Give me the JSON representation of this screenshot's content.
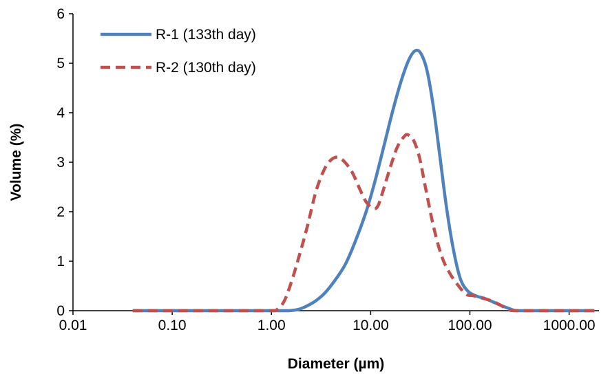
{
  "chart_data": {
    "type": "line",
    "title": "",
    "xlabel": "Diameter (µm)",
    "ylabel": "Volume (%)",
    "x_scale": "log",
    "xlim": [
      0.01,
      2000
    ],
    "ylim": [
      0,
      6
    ],
    "x_ticks": [
      {
        "value": 0.01,
        "label": "0.01"
      },
      {
        "value": 0.1,
        "label": "0.10"
      },
      {
        "value": 1,
        "label": "1.00"
      },
      {
        "value": 10,
        "label": "10.00"
      },
      {
        "value": 100,
        "label": "100.00"
      },
      {
        "value": 1000,
        "label": "1000.00"
      }
    ],
    "y_ticks": [
      {
        "value": 0,
        "label": "0"
      },
      {
        "value": 1,
        "label": "1"
      },
      {
        "value": 2,
        "label": "2"
      },
      {
        "value": 3,
        "label": "3"
      },
      {
        "value": 4,
        "label": "4"
      },
      {
        "value": 5,
        "label": "5"
      },
      {
        "value": 6,
        "label": "6"
      }
    ],
    "grid": false,
    "legend_position": "top-left",
    "series": [
      {
        "name": "R-1 (133th day)",
        "color": "#4F81BD",
        "dash": "solid",
        "points": [
          [
            0.04,
            0
          ],
          [
            0.1,
            0
          ],
          [
            0.5,
            0
          ],
          [
            1.0,
            0
          ],
          [
            1.5,
            0
          ],
          [
            1.9,
            0.03
          ],
          [
            2.3,
            0.1
          ],
          [
            2.8,
            0.2
          ],
          [
            3.5,
            0.37
          ],
          [
            4.5,
            0.65
          ],
          [
            5.6,
            0.95
          ],
          [
            7.0,
            1.4
          ],
          [
            9.0,
            2.0
          ],
          [
            11.0,
            2.6
          ],
          [
            13.5,
            3.3
          ],
          [
            16.5,
            4.0
          ],
          [
            20.0,
            4.6
          ],
          [
            24.0,
            5.05
          ],
          [
            28.0,
            5.25
          ],
          [
            32.0,
            5.2
          ],
          [
            37.0,
            4.85
          ],
          [
            43.0,
            4.1
          ],
          [
            50.0,
            3.1
          ],
          [
            58.0,
            2.1
          ],
          [
            68.0,
            1.25
          ],
          [
            80.0,
            0.65
          ],
          [
            95.0,
            0.4
          ],
          [
            115.0,
            0.3
          ],
          [
            140.0,
            0.25
          ],
          [
            170.0,
            0.18
          ],
          [
            210.0,
            0.1
          ],
          [
            260.0,
            0.03
          ],
          [
            300.0,
            0
          ],
          [
            500.0,
            0
          ],
          [
            1000.0,
            0
          ],
          [
            1800.0,
            0
          ]
        ]
      },
      {
        "name": "R-2 (130th day)",
        "color": "#C0504D",
        "dash": "dashed",
        "points": [
          [
            0.04,
            0
          ],
          [
            0.1,
            0
          ],
          [
            0.5,
            0
          ],
          [
            1.0,
            0
          ],
          [
            1.15,
            0.03
          ],
          [
            1.35,
            0.2
          ],
          [
            1.6,
            0.6
          ],
          [
            1.9,
            1.1
          ],
          [
            2.3,
            1.7
          ],
          [
            2.8,
            2.4
          ],
          [
            3.4,
            2.85
          ],
          [
            4.0,
            3.05
          ],
          [
            4.7,
            3.1
          ],
          [
            5.5,
            3.0
          ],
          [
            6.5,
            2.8
          ],
          [
            7.8,
            2.45
          ],
          [
            9.0,
            2.2
          ],
          [
            10.5,
            2.07
          ],
          [
            11.7,
            2.1
          ],
          [
            13.0,
            2.35
          ],
          [
            15.5,
            2.85
          ],
          [
            18.5,
            3.3
          ],
          [
            22.0,
            3.53
          ],
          [
            24.0,
            3.55
          ],
          [
            27.0,
            3.45
          ],
          [
            31.0,
            3.1
          ],
          [
            36.0,
            2.45
          ],
          [
            43.0,
            1.7
          ],
          [
            52.0,
            1.1
          ],
          [
            63.0,
            0.75
          ],
          [
            77.0,
            0.5
          ],
          [
            92.0,
            0.33
          ],
          [
            110.0,
            0.3
          ],
          [
            135.0,
            0.25
          ],
          [
            165.0,
            0.2
          ],
          [
            200.0,
            0.12
          ],
          [
            240.0,
            0.03
          ],
          [
            280.0,
            0
          ],
          [
            500.0,
            0
          ],
          [
            1000.0,
            0
          ],
          [
            1800.0,
            0
          ]
        ]
      }
    ]
  }
}
